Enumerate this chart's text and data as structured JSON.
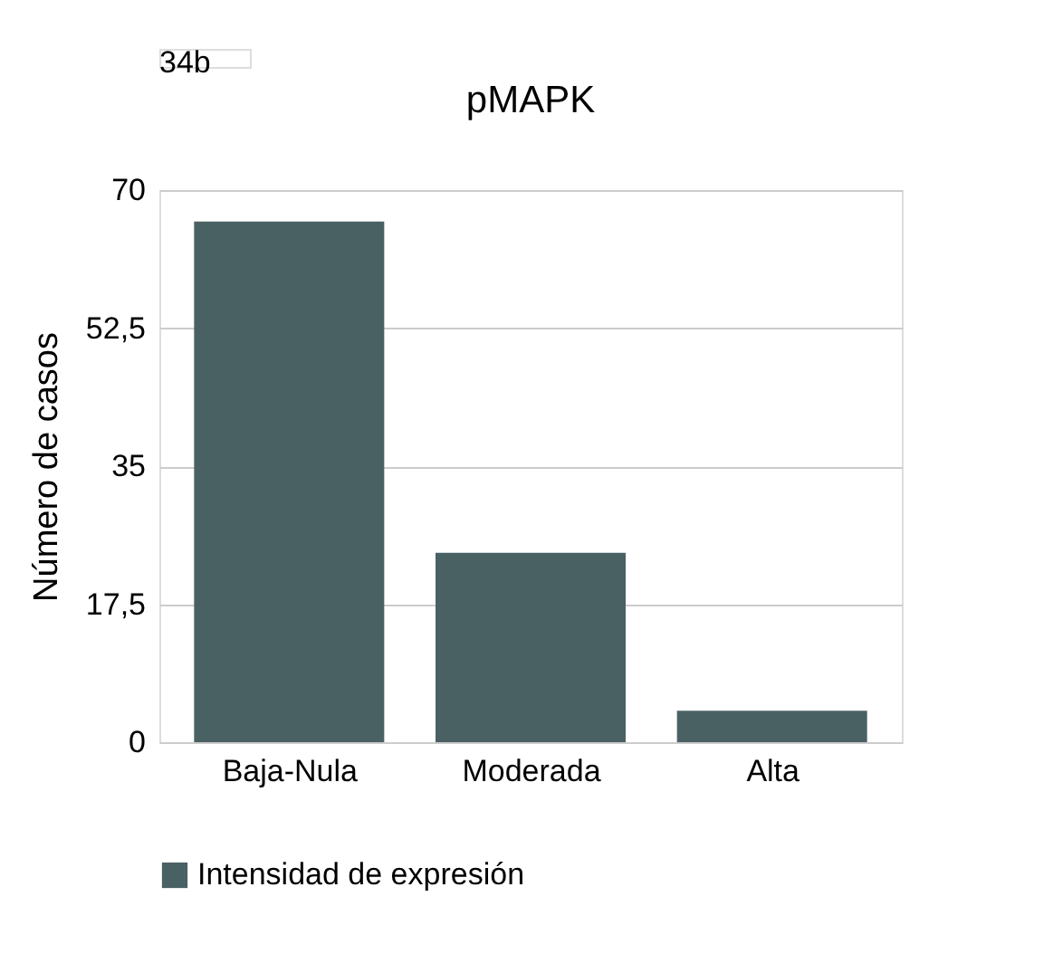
{
  "chart_data": {
    "type": "bar",
    "title": "pMAPK",
    "ylabel": "Número de casos",
    "annotations": [
      "34b"
    ],
    "categories": [
      "Baja-Nula",
      "Moderada",
      "Alta"
    ],
    "series": [
      {
        "name": "Intensidad de expresión",
        "color": "#4a6163",
        "values": [
          66,
          24,
          4
        ]
      }
    ],
    "ylim": [
      0,
      70
    ],
    "yticks": [
      0,
      {
        "value": 17.5,
        "label": "17,5"
      },
      35,
      {
        "value": 52.5,
        "label": "52,5"
      },
      70
    ],
    "grid": "y",
    "legend": "bottom"
  }
}
